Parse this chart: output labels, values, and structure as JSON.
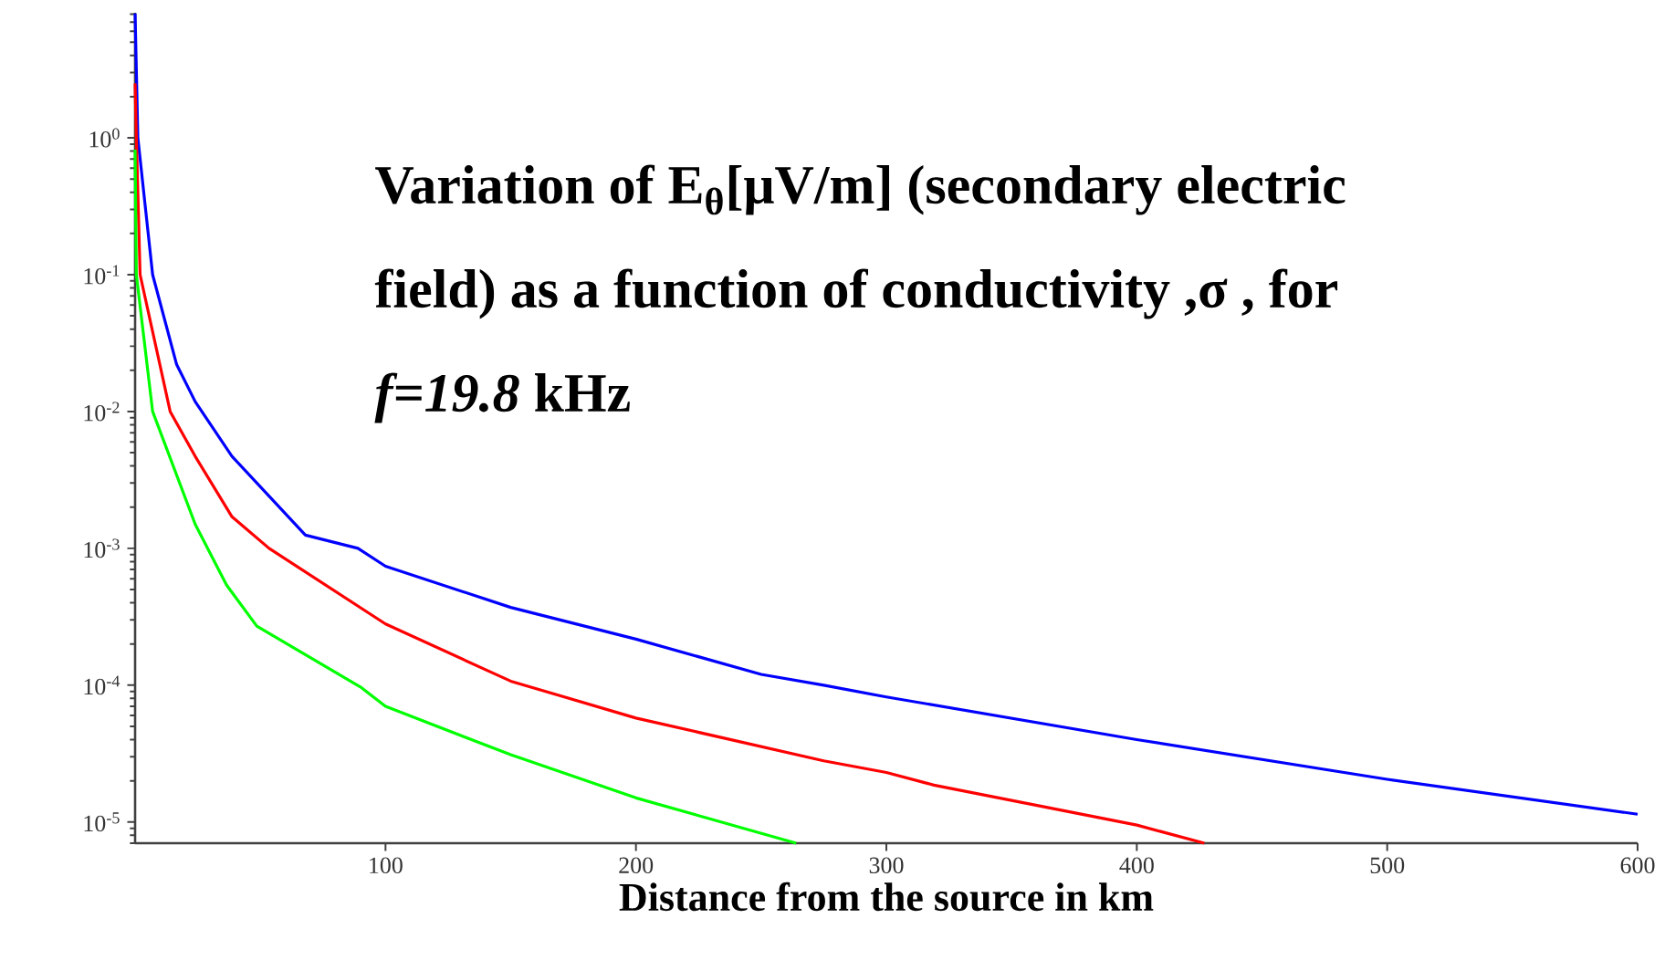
{
  "chart_data": {
    "type": "line",
    "title": "Variation of E$_{θ}$[μV/m] (secondary electric field) as a function of conductivity ,σ , for *f=19.8* kHz",
    "xlabel": "Distance from the source in km",
    "log": "y",
    "grid": false,
    "marker": "none",
    "line_style": "solid",
    "xlim": [
      0,
      600
    ],
    "ylim": [
      7e-06,
      8.2
    ],
    "xticks": [
      100,
      200,
      300,
      400,
      500,
      600
    ],
    "yticks": [
      {
        "value": 1,
        "label": "10$^{0}$"
      },
      {
        "value": 0.1,
        "label": "10$^{-1}$"
      },
      {
        "value": 0.01,
        "label": "10$^{-2}$"
      },
      {
        "value": 0.001,
        "label": "10$^{-3}$"
      },
      {
        "value": 0.0001,
        "label": "10$^{-4}$"
      },
      {
        "value": 1e-05,
        "label": "10$^{-5}$"
      }
    ],
    "series": [
      {
        "color": "#0000ff",
        "x": [
          0,
          1.1,
          7,
          16.6,
          24,
          38.7,
          68,
          89,
          100,
          150,
          200,
          250,
          275,
          300,
          400,
          500,
          600
        ],
        "values": [
          8.1,
          1.0,
          0.1,
          0.022,
          0.0118,
          0.0047,
          0.00125,
          0.001,
          0.00074,
          0.00037,
          0.000217,
          0.00012,
          0.0001,
          8.2e-05,
          4e-05,
          2.05e-05,
          1.14e-05
        ]
      },
      {
        "color": "#ff0000",
        "x": [
          0,
          0.5,
          2,
          14,
          24,
          38.7,
          53.5,
          100,
          150,
          200,
          275,
          300,
          319,
          400,
          427
        ],
        "values": [
          2.5,
          1.0,
          0.1,
          0.01,
          0.0047,
          0.0017,
          0.001,
          0.00028,
          0.000107,
          5.75e-05,
          2.8e-05,
          2.3e-05,
          1.86e-05,
          9.5e-06,
          7e-06
        ]
      },
      {
        "color": "#00ff00",
        "x": [
          0,
          0.5,
          7,
          24,
          36.5,
          48.6,
          90,
          100,
          150,
          200,
          264
        ],
        "values": [
          0.82,
          0.1,
          0.01,
          0.0015,
          0.00054,
          0.00027,
          9.7e-05,
          7e-05,
          3.1e-05,
          1.5e-05,
          7e-06
        ]
      }
    ]
  }
}
